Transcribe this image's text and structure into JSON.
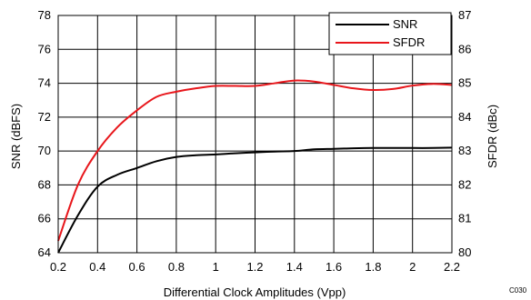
{
  "chart_data": {
    "type": "line",
    "xlabel": "Differential Clock Amplitudes (Vpp)",
    "ylabel": "SNR (dBFS)",
    "ylabel_right": "SFDR (dBc)",
    "xlim": [
      0.2,
      2.2
    ],
    "ylim": [
      64,
      78
    ],
    "ylim_right": [
      80,
      87
    ],
    "x_ticks": [
      "0.2",
      "0.4",
      "0.6",
      "0.8",
      "1",
      "1.2",
      "1.4",
      "1.6",
      "1.8",
      "2",
      "2.2"
    ],
    "y_ticks": [
      "64",
      "66",
      "68",
      "70",
      "72",
      "74",
      "76",
      "78"
    ],
    "y_ticks_right": [
      "80",
      "81",
      "82",
      "83",
      "84",
      "85",
      "86",
      "87"
    ],
    "grid": true,
    "legend_position": "top-right",
    "code_label": "C030",
    "series": [
      {
        "name": "SNR",
        "color": "#000000",
        "axis": "left",
        "x": [
          0.2,
          0.3,
          0.4,
          0.5,
          0.6,
          0.7,
          0.8,
          0.9,
          1.0,
          1.1,
          1.2,
          1.3,
          1.4,
          1.5,
          1.6,
          1.7,
          1.8,
          1.9,
          2.0,
          2.1,
          2.2
        ],
        "values": [
          64.0,
          66.2,
          67.9,
          68.6,
          69.0,
          69.4,
          69.65,
          69.75,
          69.8,
          69.87,
          69.92,
          69.97,
          70.0,
          70.1,
          70.13,
          70.16,
          70.18,
          70.18,
          70.18,
          70.18,
          70.2
        ]
      },
      {
        "name": "SFDR",
        "color": "#e8161b",
        "axis": "right",
        "x": [
          0.2,
          0.3,
          0.4,
          0.5,
          0.6,
          0.7,
          0.8,
          0.9,
          1.0,
          1.1,
          1.2,
          1.3,
          1.4,
          1.5,
          1.6,
          1.7,
          1.8,
          1.9,
          2.0,
          2.1,
          2.2
        ],
        "values": [
          80.35,
          82.0,
          83.0,
          83.7,
          84.2,
          84.6,
          84.75,
          84.85,
          84.92,
          84.92,
          84.92,
          85.0,
          85.08,
          85.05,
          84.95,
          84.85,
          84.8,
          84.83,
          84.93,
          84.98,
          84.95
        ]
      }
    ]
  }
}
